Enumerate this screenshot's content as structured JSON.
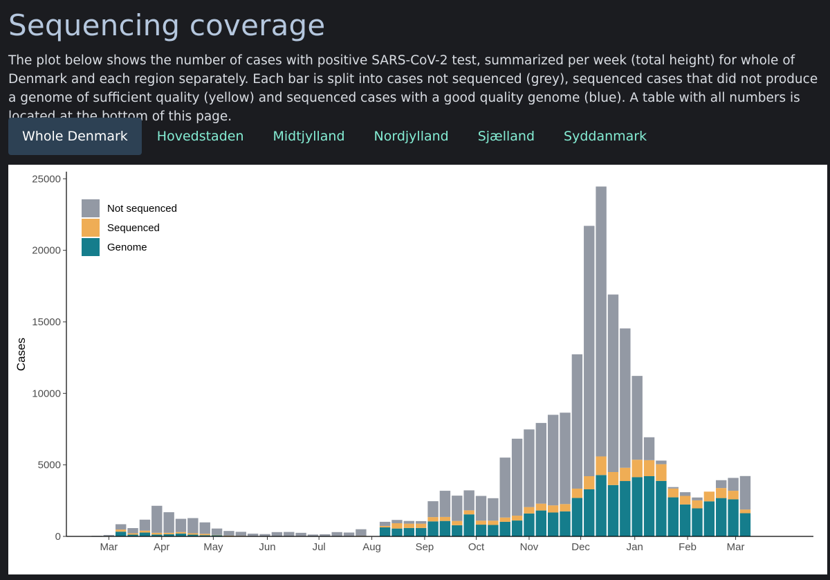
{
  "page": {
    "title": "Sequencing coverage",
    "description": "The plot below shows the number of cases with positive SARS-CoV-2 test, summarized per week (total height) for whole of Denmark and each region separately. Each bar is split into cases not sequenced (grey), sequenced cases that did not produce a genome of sufficient quality (yellow) and sequenced cases with a good quality genome (blue). A table with all numbers is located at the bottom of this page."
  },
  "tabs": [
    {
      "label": "Whole Denmark",
      "active": true
    },
    {
      "label": "Hovedstaden",
      "active": false
    },
    {
      "label": "Midtjylland",
      "active": false
    },
    {
      "label": "Nordjylland",
      "active": false
    },
    {
      "label": "Sjælland",
      "active": false
    },
    {
      "label": "Syddanmark",
      "active": false
    }
  ],
  "colors": {
    "not_sequenced": "#9399a4",
    "sequenced": "#efad55",
    "genome": "#157d8c",
    "tab_active_bg": "#2d4154",
    "tab_text": "#84ecd3"
  },
  "chart_data": {
    "type": "bar",
    "stacked": true,
    "ylabel": "Cases",
    "xlabel": "",
    "ylim": [
      0,
      25500
    ],
    "yticks": [
      0,
      5000,
      10000,
      15000,
      20000,
      25000
    ],
    "grid": false,
    "legend_position": "top-left",
    "x_ticks": [
      {
        "label": "Mar",
        "week": 4
      },
      {
        "label": "Apr",
        "week": 8.4
      },
      {
        "label": "May",
        "week": 12.7
      },
      {
        "label": "Jun",
        "week": 17.2
      },
      {
        "label": "Jul",
        "week": 21.5
      },
      {
        "label": "Aug",
        "week": 25.9
      },
      {
        "label": "Sep",
        "week": 30.3
      },
      {
        "label": "Oct",
        "week": 34.6
      },
      {
        "label": "Nov",
        "week": 39.0
      },
      {
        "label": "Dec",
        "week": 43.3
      },
      {
        "label": "Jan",
        "week": 47.8
      },
      {
        "label": "Feb",
        "week": 52.2
      },
      {
        "label": "Mar",
        "week": 56.2
      }
    ],
    "weeks": [
      1,
      2,
      3,
      4,
      5,
      6,
      7,
      8,
      9,
      10,
      11,
      12,
      13,
      14,
      15,
      16,
      17,
      18,
      19,
      20,
      21,
      22,
      23,
      24,
      25,
      26,
      27,
      28,
      29,
      30,
      31,
      32,
      33,
      34,
      35,
      36,
      37,
      38,
      39,
      40,
      41,
      42,
      43,
      44,
      45,
      46,
      47,
      48,
      49,
      50,
      51,
      52,
      53,
      54,
      55,
      56,
      57,
      58
    ],
    "series": [
      {
        "name": "Genome",
        "key": "genome",
        "values": [
          0,
          0,
          10,
          30,
          330,
          120,
          270,
          130,
          150,
          200,
          120,
          80,
          80,
          30,
          20,
          20,
          10,
          10,
          10,
          20,
          10,
          10,
          10,
          20,
          30,
          0,
          630,
          550,
          590,
          590,
          1050,
          1080,
          780,
          1540,
          820,
          800,
          1020,
          1110,
          1600,
          1810,
          1670,
          1750,
          2690,
          3290,
          4290,
          3590,
          3870,
          4140,
          4210,
          3880,
          2730,
          2230,
          1960,
          2450,
          2680,
          2590,
          1620,
          0
        ]
      },
      {
        "name": "Sequenced",
        "key": "sequenced",
        "values": [
          0,
          0,
          0,
          0,
          150,
          100,
          130,
          120,
          100,
          100,
          100,
          100,
          20,
          20,
          20,
          10,
          10,
          10,
          10,
          10,
          10,
          10,
          10,
          10,
          10,
          0,
          100,
          370,
          300,
          300,
          300,
          280,
          300,
          280,
          280,
          300,
          300,
          340,
          450,
          480,
          500,
          510,
          650,
          920,
          1300,
          910,
          930,
          1220,
          1120,
          1170,
          620,
          600,
          560,
          680,
          700,
          600,
          260,
          0
        ]
      },
      {
        "name": "Not sequenced",
        "key": "not_sequenced",
        "values": [
          0,
          0,
          30,
          70,
          370,
          360,
          770,
          1890,
          1440,
          930,
          1060,
          800,
          450,
          330,
          280,
          160,
          140,
          280,
          290,
          220,
          110,
          130,
          280,
          240,
          460,
          0,
          290,
          230,
          190,
          180,
          1110,
          1830,
          1770,
          1400,
          1730,
          1570,
          4190,
          5380,
          5430,
          5640,
          6330,
          6390,
          9390,
          17500,
          18870,
          12410,
          9740,
          5860,
          1600,
          250,
          100,
          260,
          200,
          0,
          550,
          900,
          2340,
          0
        ]
      }
    ]
  }
}
